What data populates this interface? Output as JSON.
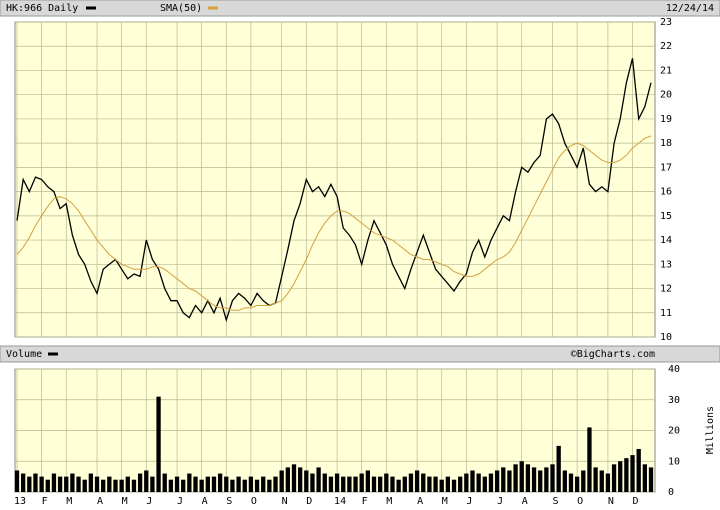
{
  "chart_data": [
    {
      "type": "line",
      "title": "HK:966 Daily",
      "date": "12/24/14",
      "ylim": [
        10,
        23
      ],
      "yticks": [
        10,
        11,
        12,
        13,
        14,
        15,
        16,
        17,
        18,
        19,
        20,
        21,
        22,
        23
      ],
      "grid": true,
      "series": [
        {
          "name": "HK:966 Daily",
          "color": "#000000",
          "values": [
            14.8,
            16.5,
            16.0,
            16.6,
            16.5,
            16.2,
            16.0,
            15.3,
            15.5,
            14.2,
            13.4,
            13.0,
            12.3,
            11.8,
            12.8,
            13.0,
            13.2,
            12.8,
            12.4,
            12.6,
            12.5,
            14.0,
            13.2,
            12.8,
            12.0,
            11.5,
            11.5,
            11.0,
            10.8,
            11.3,
            11.0,
            11.5,
            11.0,
            11.6,
            10.7,
            11.5,
            11.8,
            11.6,
            11.3,
            11.8,
            11.5,
            11.3,
            11.4,
            12.5,
            13.6,
            14.8,
            15.5,
            16.5,
            16.0,
            16.2,
            15.8,
            16.3,
            15.8,
            14.5,
            14.2,
            13.8,
            13.0,
            14.0,
            14.8,
            14.3,
            13.8,
            13.0,
            12.5,
            12.0,
            12.8,
            13.5,
            14.2,
            13.5,
            12.8,
            12.5,
            12.2,
            11.9,
            12.3,
            12.6,
            13.5,
            14.0,
            13.3,
            14.0,
            14.5,
            15.0,
            14.8,
            16.0,
            17.0,
            16.8,
            17.2,
            17.5,
            19.0,
            19.2,
            18.8,
            18.0,
            17.5,
            17.0,
            17.8,
            16.3,
            16.0,
            16.2,
            16.0,
            18.0,
            19.0,
            20.5,
            21.5,
            19.0,
            19.5,
            20.5
          ]
        },
        {
          "name": "SMA(50)",
          "color": "#d4a040",
          "values": [
            13.4,
            13.7,
            14.1,
            14.6,
            15.0,
            15.4,
            15.7,
            15.8,
            15.7,
            15.5,
            15.2,
            14.8,
            14.4,
            14.0,
            13.7,
            13.4,
            13.2,
            13.0,
            12.9,
            12.8,
            12.8,
            12.8,
            12.9,
            12.9,
            12.8,
            12.6,
            12.4,
            12.2,
            12.0,
            11.9,
            11.7,
            11.5,
            11.3,
            11.2,
            11.2,
            11.1,
            11.1,
            11.2,
            11.2,
            11.3,
            11.3,
            11.3,
            11.4,
            11.5,
            11.8,
            12.2,
            12.7,
            13.2,
            13.8,
            14.3,
            14.7,
            15.0,
            15.2,
            15.2,
            15.1,
            14.9,
            14.7,
            14.5,
            14.3,
            14.2,
            14.1,
            14.0,
            13.8,
            13.6,
            13.4,
            13.3,
            13.2,
            13.2,
            13.1,
            13.0,
            12.9,
            12.7,
            12.6,
            12.5,
            12.5,
            12.6,
            12.8,
            13.0,
            13.2,
            13.3,
            13.5,
            13.9,
            14.4,
            14.9,
            15.4,
            15.9,
            16.4,
            16.9,
            17.4,
            17.7,
            17.9,
            18.0,
            17.9,
            17.7,
            17.5,
            17.3,
            17.2,
            17.2,
            17.3,
            17.5,
            17.8,
            18.0,
            18.2,
            18.3
          ]
        }
      ]
    },
    {
      "type": "bar",
      "title": "Volume",
      "source": "©BigCharts.com",
      "y_label": "Millions",
      "ylim": [
        0,
        40
      ],
      "yticks": [
        0,
        10,
        20,
        30,
        40
      ],
      "color": "#000000",
      "categories": [
        "13",
        null,
        null,
        null,
        "F",
        null,
        null,
        null,
        "M",
        null,
        null,
        null,
        null,
        "A",
        null,
        null,
        null,
        "M",
        null,
        null,
        null,
        "J",
        null,
        null,
        null,
        null,
        "J",
        null,
        null,
        null,
        "A",
        null,
        null,
        null,
        "S",
        null,
        null,
        null,
        "O",
        null,
        null,
        null,
        null,
        "N",
        null,
        null,
        null,
        "D",
        null,
        null,
        null,
        null,
        "14",
        null,
        null,
        null,
        "F",
        null,
        null,
        null,
        "M",
        null,
        null,
        null,
        null,
        "A",
        null,
        null,
        null,
        "M",
        null,
        null,
        null,
        "J",
        null,
        null,
        null,
        null,
        "J",
        null,
        null,
        null,
        "A",
        null,
        null,
        null,
        null,
        "S",
        null,
        null,
        null,
        "O",
        null,
        null,
        null,
        null,
        "N",
        null,
        null,
        null,
        "D",
        null,
        null,
        null
      ],
      "values": [
        7,
        6,
        5,
        6,
        5,
        4,
        6,
        5,
        5,
        6,
        5,
        4,
        6,
        5,
        4,
        5,
        4,
        4,
        5,
        4,
        6,
        7,
        5,
        31,
        6,
        4,
        5,
        4,
        6,
        5,
        4,
        5,
        5,
        6,
        5,
        4,
        5,
        4,
        5,
        4,
        5,
        4,
        5,
        7,
        8,
        9,
        8,
        7,
        6,
        8,
        6,
        5,
        6,
        5,
        5,
        5,
        6,
        7,
        5,
        5,
        6,
        5,
        4,
        5,
        6,
        7,
        6,
        5,
        5,
        4,
        5,
        4,
        5,
        6,
        7,
        6,
        5,
        6,
        7,
        8,
        7,
        9,
        10,
        9,
        8,
        7,
        8,
        9,
        15,
        7,
        6,
        5,
        7,
        21,
        8,
        7,
        6,
        9,
        10,
        11,
        12,
        14,
        9,
        8
      ]
    }
  ]
}
